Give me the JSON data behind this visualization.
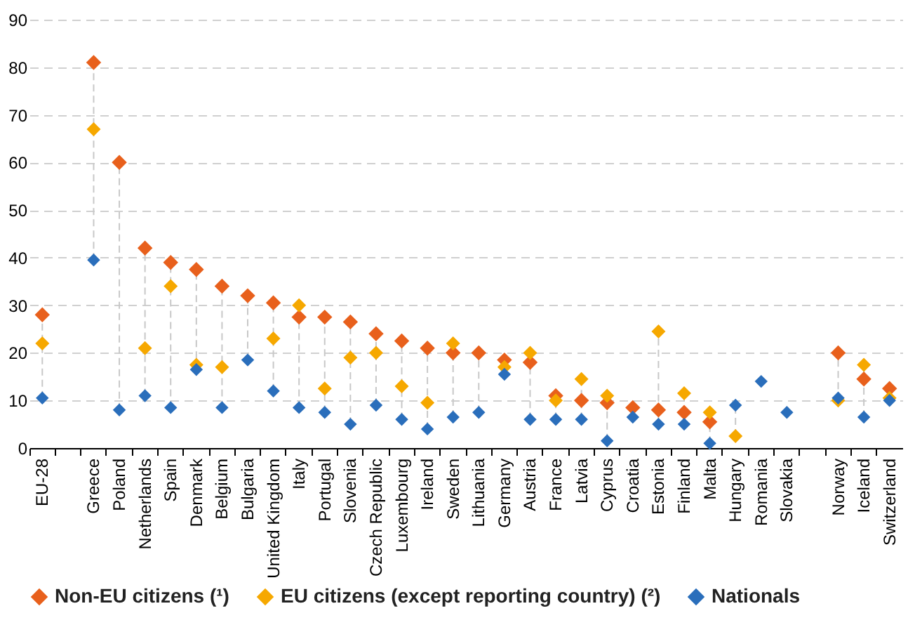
{
  "chart_data": {
    "type": "scatter",
    "marker": "diamond",
    "grid": "y",
    "legend": "bottom",
    "categories": [
      "EU-28",
      null,
      "Greece",
      "Poland",
      "Netherlands",
      "Spain",
      "Denmark",
      "Belgium",
      "Bulgaria",
      "United Kingdom",
      "Italy",
      "Portugal",
      "Slovenia",
      "Czech Republic",
      "Luxembourg",
      "Ireland",
      "Sweden",
      "Lithuania",
      "Germany",
      "Austria",
      "France",
      "Latvia",
      "Cyprus",
      "Croatia",
      "Estonia",
      "Finland",
      "Malta",
      "Hungary",
      "Romania",
      "Slovakia",
      null,
      "Norway",
      "Iceland",
      "Switzerland"
    ],
    "ylim": [
      0,
      90
    ],
    "yticks": [
      0,
      10,
      20,
      30,
      40,
      50,
      60,
      70,
      80,
      90
    ],
    "series": [
      {
        "name": "Non-EU citizens (¹)",
        "color": "#e8601c",
        "values": [
          28,
          null,
          81,
          60,
          42,
          39,
          37.5,
          34,
          32,
          30.5,
          27.5,
          27.5,
          26.5,
          24,
          22.5,
          21,
          20,
          20,
          18.5,
          18,
          11,
          10,
          9.5,
          8.5,
          8,
          7.5,
          5.5,
          null,
          null,
          null,
          null,
          20,
          14.5,
          12.5
        ]
      },
      {
        "name": "EU citizens (except reporting country) (²)",
        "color": "#f6a800",
        "values": [
          22,
          null,
          67,
          null,
          21,
          34,
          17.5,
          17,
          null,
          23,
          30,
          12.5,
          19,
          20,
          13,
          9.5,
          22,
          null,
          17,
          20,
          10,
          14.5,
          11,
          null,
          24.5,
          11.5,
          7.5,
          2.5,
          null,
          null,
          null,
          10,
          17.5,
          10.5
        ]
      },
      {
        "name": "Nationals",
        "color": "#2a6ebb",
        "values": [
          10.5,
          null,
          39.5,
          8,
          11,
          8.5,
          16.5,
          8.5,
          18.5,
          12,
          8.5,
          7.5,
          5,
          9,
          6,
          4,
          6.5,
          7.5,
          15.5,
          6,
          6,
          6,
          1.5,
          6.5,
          5,
          5,
          1,
          9,
          14,
          7.5,
          null,
          10.5,
          6.5,
          10
        ]
      }
    ]
  }
}
